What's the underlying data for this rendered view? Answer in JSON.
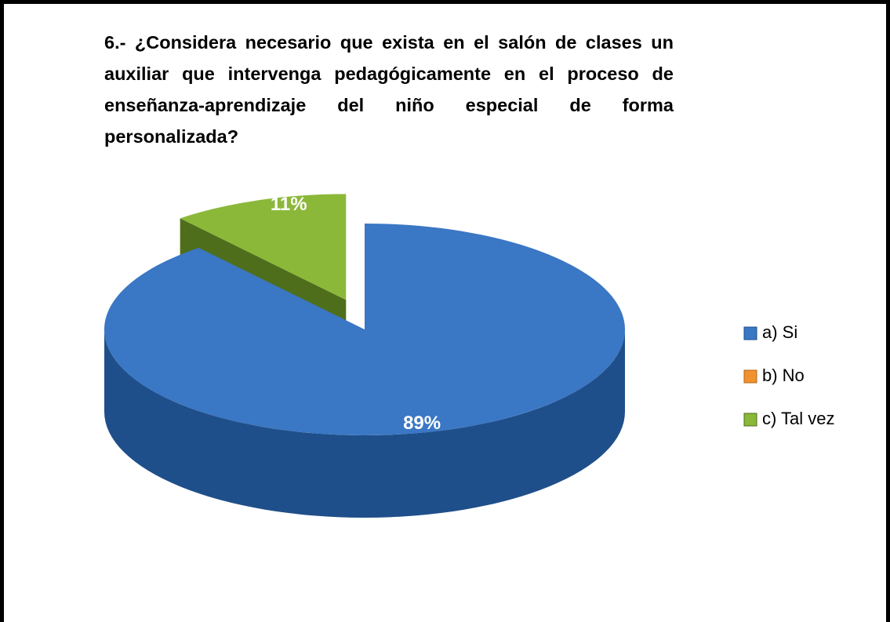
{
  "chart_data": {
    "type": "pie3d",
    "title": "6.- ¿Considera necesario que exista en el salón de clases un auxiliar que intervenga pedagógicamente en el proceso de enseñanza-aprendizaje del niño especial de forma personalizada?",
    "categories": [
      "a) Si",
      "b) No",
      "c) Tal vez"
    ],
    "values": [
      89,
      0,
      11
    ],
    "value_labels": [
      "89%",
      null,
      "11%"
    ],
    "colors": [
      "#3a77c4",
      "#f0932e",
      "#8cb83a"
    ],
    "side_colors": [
      "#1f4f8a",
      "#b0651a",
      "#4f6e1c"
    ],
    "legend": "right"
  }
}
